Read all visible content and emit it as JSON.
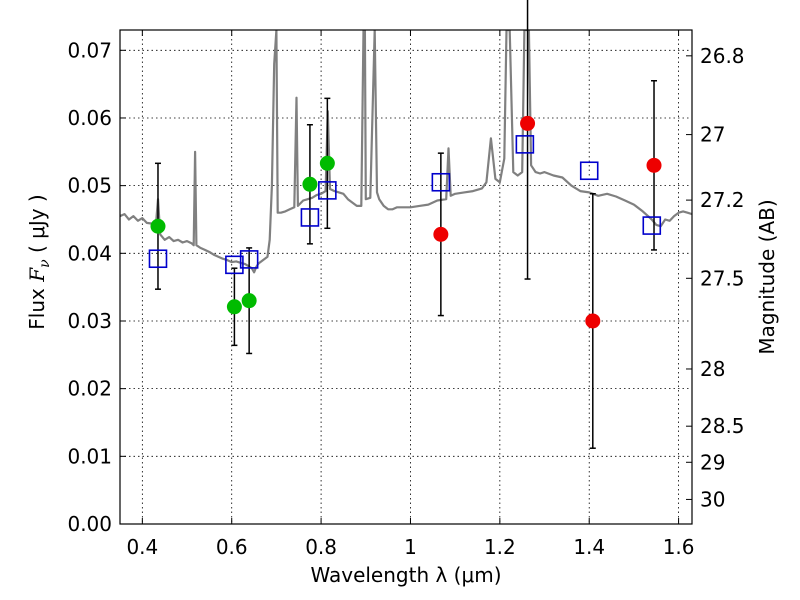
{
  "chart_data": {
    "type": "scatter",
    "xlabel": "Wavelength  λ (μm)",
    "ylabel_left": {
      "pre": "Flux  ",
      "italic": "F",
      "sub": "ν",
      "post": "  ( μJy )"
    },
    "ylabel_right": "Magnitude (AB)",
    "xlim": [
      0.35,
      1.63
    ],
    "ylim": [
      0.0,
      0.073
    ],
    "grid": true,
    "x_ticks": [
      {
        "v": 0.4,
        "label": "0.4"
      },
      {
        "v": 0.6,
        "label": "0.6"
      },
      {
        "v": 0.8,
        "label": "0.8"
      },
      {
        "v": 1.0,
        "label": "1"
      },
      {
        "v": 1.2,
        "label": "1.2"
      },
      {
        "v": 1.4,
        "label": "1.4"
      },
      {
        "v": 1.6,
        "label": "1.6"
      }
    ],
    "y_ticks": [
      {
        "v": 0.0,
        "label": "0.00"
      },
      {
        "v": 0.01,
        "label": "0.01"
      },
      {
        "v": 0.02,
        "label": "0.02"
      },
      {
        "v": 0.03,
        "label": "0.03"
      },
      {
        "v": 0.04,
        "label": "0.04"
      },
      {
        "v": 0.05,
        "label": "0.05"
      },
      {
        "v": 0.06,
        "label": "0.06"
      },
      {
        "v": 0.07,
        "label": "0.07"
      }
    ],
    "mag_ticks": [
      {
        "v": 26.8,
        "label": "26.8"
      },
      {
        "v": 27.0,
        "label": "27"
      },
      {
        "v": 27.2,
        "label": "27.2"
      },
      {
        "v": 27.5,
        "label": "27.5"
      },
      {
        "v": 28.0,
        "label": "28"
      },
      {
        "v": 28.5,
        "label": "28.5"
      },
      {
        "v": 29.0,
        "label": "29"
      },
      {
        "v": 30.0,
        "label": "30"
      }
    ],
    "series": [
      {
        "kind": "green-detections",
        "color": "#00bb00",
        "points": [
          {
            "x": 0.435,
            "y": 0.044,
            "err": 0.0093
          },
          {
            "x": 0.606,
            "y": 0.0321,
            "err": 0.0057
          },
          {
            "x": 0.639,
            "y": 0.033,
            "err": 0.0078
          },
          {
            "x": 0.775,
            "y": 0.0502,
            "err": 0.0088
          },
          {
            "x": 0.814,
            "y": 0.0533,
            "err": 0.0096
          }
        ]
      },
      {
        "kind": "red-detections",
        "color": "#ee0000",
        "points": [
          {
            "x": 1.068,
            "y": 0.0428,
            "err": 0.012
          },
          {
            "x": 1.262,
            "y": 0.0592,
            "err": 0.023
          },
          {
            "x": 1.408,
            "y": 0.03,
            "err": 0.0188
          },
          {
            "x": 1.545,
            "y": 0.053,
            "err": 0.0125
          }
        ]
      },
      {
        "kind": "model-squares",
        "color": "#0000cc",
        "points": [
          {
            "x": 0.435,
            "y": 0.0392
          },
          {
            "x": 0.606,
            "y": 0.0383
          },
          {
            "x": 0.639,
            "y": 0.0391
          },
          {
            "x": 0.775,
            "y": 0.0453
          },
          {
            "x": 0.814,
            "y": 0.0493
          },
          {
            "x": 1.068,
            "y": 0.0505
          },
          {
            "x": 1.256,
            "y": 0.0561
          },
          {
            "x": 1.4,
            "y": 0.0522
          },
          {
            "x": 1.54,
            "y": 0.0441
          }
        ]
      },
      {
        "kind": "model-spectrum",
        "color": "#808080",
        "points": [
          [
            0.35,
            0.0455
          ],
          [
            0.36,
            0.0458
          ],
          [
            0.37,
            0.045
          ],
          [
            0.38,
            0.0455
          ],
          [
            0.39,
            0.0448
          ],
          [
            0.4,
            0.0452
          ],
          [
            0.41,
            0.0445
          ],
          [
            0.42,
            0.0444
          ],
          [
            0.43,
            0.044
          ],
          [
            0.435,
            0.048
          ],
          [
            0.44,
            0.0428
          ],
          [
            0.45,
            0.042
          ],
          [
            0.46,
            0.0424
          ],
          [
            0.47,
            0.0418
          ],
          [
            0.48,
            0.042
          ],
          [
            0.49,
            0.0416
          ],
          [
            0.5,
            0.0418
          ],
          [
            0.51,
            0.0415
          ],
          [
            0.515,
            0.0412
          ],
          [
            0.518,
            0.055
          ],
          [
            0.521,
            0.0412
          ],
          [
            0.53,
            0.0408
          ],
          [
            0.54,
            0.0405
          ],
          [
            0.55,
            0.0402
          ],
          [
            0.56,
            0.0398
          ],
          [
            0.57,
            0.0395
          ],
          [
            0.58,
            0.0392
          ],
          [
            0.59,
            0.039
          ],
          [
            0.6,
            0.0387
          ],
          [
            0.61,
            0.0388
          ],
          [
            0.62,
            0.0386
          ],
          [
            0.63,
            0.0384
          ],
          [
            0.64,
            0.038
          ],
          [
            0.645,
            0.0378
          ],
          [
            0.65,
            0.0372
          ],
          [
            0.655,
            0.038
          ],
          [
            0.66,
            0.0385
          ],
          [
            0.67,
            0.039
          ],
          [
            0.68,
            0.0395
          ],
          [
            0.685,
            0.042
          ],
          [
            0.69,
            0.05
          ],
          [
            0.695,
            0.068
          ],
          [
            0.7,
            0.073
          ],
          [
            0.703,
            0.046
          ],
          [
            0.71,
            0.046
          ],
          [
            0.72,
            0.0462
          ],
          [
            0.73,
            0.0465
          ],
          [
            0.74,
            0.0468
          ],
          [
            0.745,
            0.063
          ],
          [
            0.748,
            0.047
          ],
          [
            0.76,
            0.0478
          ],
          [
            0.77,
            0.048
          ],
          [
            0.78,
            0.0482
          ],
          [
            0.79,
            0.0486
          ],
          [
            0.8,
            0.0488
          ],
          [
            0.81,
            0.0492
          ],
          [
            0.815,
            0.061
          ],
          [
            0.82,
            0.0495
          ],
          [
            0.83,
            0.0492
          ],
          [
            0.84,
            0.049
          ],
          [
            0.85,
            0.0488
          ],
          [
            0.86,
            0.048
          ],
          [
            0.87,
            0.0475
          ],
          [
            0.88,
            0.047
          ],
          [
            0.89,
            0.047
          ],
          [
            0.895,
            0.073
          ],
          [
            0.898,
            0.073
          ],
          [
            0.9,
            0.048
          ],
          [
            0.91,
            0.0482
          ],
          [
            0.92,
            0.073
          ],
          [
            0.925,
            0.049
          ],
          [
            0.93,
            0.048
          ],
          [
            0.94,
            0.047
          ],
          [
            0.95,
            0.0465
          ],
          [
            0.96,
            0.0465
          ],
          [
            0.97,
            0.0468
          ],
          [
            0.98,
            0.0468
          ],
          [
            1.0,
            0.0468
          ],
          [
            1.02,
            0.047
          ],
          [
            1.04,
            0.0472
          ],
          [
            1.06,
            0.0478
          ],
          [
            1.08,
            0.048
          ],
          [
            1.085,
            0.0555
          ],
          [
            1.09,
            0.0485
          ],
          [
            1.1,
            0.0488
          ],
          [
            1.12,
            0.049
          ],
          [
            1.14,
            0.0492
          ],
          [
            1.16,
            0.0496
          ],
          [
            1.17,
            0.0505
          ],
          [
            1.18,
            0.057
          ],
          [
            1.19,
            0.051
          ],
          [
            1.2,
            0.0505
          ],
          [
            1.21,
            0.054
          ],
          [
            1.215,
            0.073
          ],
          [
            1.222,
            0.073
          ],
          [
            1.23,
            0.052
          ],
          [
            1.24,
            0.0515
          ],
          [
            1.25,
            0.052
          ],
          [
            1.255,
            0.073
          ],
          [
            1.265,
            0.073
          ],
          [
            1.27,
            0.053
          ],
          [
            1.28,
            0.052
          ],
          [
            1.29,
            0.0518
          ],
          [
            1.3,
            0.052
          ],
          [
            1.32,
            0.0515
          ],
          [
            1.34,
            0.0512
          ],
          [
            1.36,
            0.05
          ],
          [
            1.38,
            0.0492
          ],
          [
            1.4,
            0.049
          ],
          [
            1.42,
            0.0485
          ],
          [
            1.44,
            0.0488
          ],
          [
            1.46,
            0.0484
          ],
          [
            1.48,
            0.0478
          ],
          [
            1.5,
            0.0472
          ],
          [
            1.52,
            0.0462
          ],
          [
            1.54,
            0.045
          ],
          [
            1.55,
            0.0442
          ],
          [
            1.56,
            0.044
          ],
          [
            1.57,
            0.045
          ],
          [
            1.58,
            0.0448
          ],
          [
            1.59,
            0.0455
          ],
          [
            1.6,
            0.046
          ],
          [
            1.61,
            0.0462
          ],
          [
            1.62,
            0.046
          ],
          [
            1.63,
            0.0458
          ]
        ]
      }
    ]
  }
}
